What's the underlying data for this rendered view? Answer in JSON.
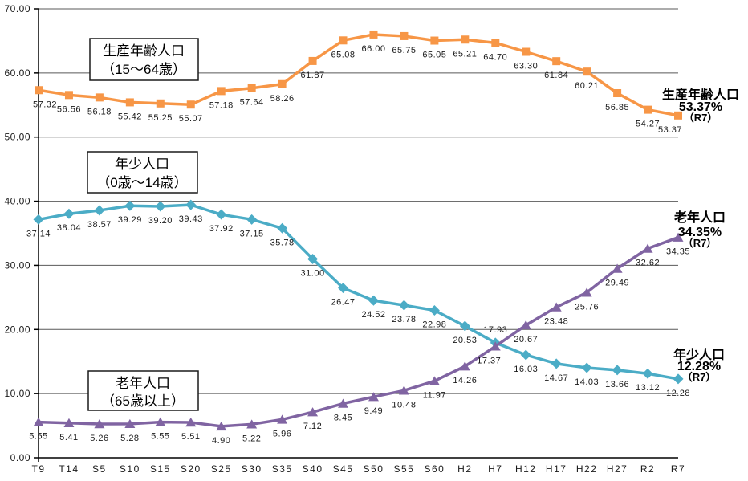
{
  "chart_data": {
    "type": "line",
    "title": "",
    "xlabel": "",
    "ylabel": "",
    "ylim": [
      0,
      70
    ],
    "ytick_step": 10,
    "ytick_labels": [
      "0.00",
      "10.00",
      "20.00",
      "30.00",
      "40.00",
      "50.00",
      "60.00",
      "70.00"
    ],
    "grid": "horizontal",
    "legend_position": "floating-boxes",
    "categories": [
      "T9",
      "T14",
      "S5",
      "S10",
      "S15",
      "S20",
      "S25",
      "S30",
      "S35",
      "S40",
      "S45",
      "S50",
      "S55",
      "S60",
      "H2",
      "H7",
      "H12",
      "H17",
      "H22",
      "H27",
      "R2",
      "R7"
    ],
    "series": [
      {
        "key": "working",
        "name": "生産年齢人口（15～64歳）",
        "color": "#F79646",
        "marker": "square",
        "values": [
          57.32,
          56.56,
          56.18,
          55.42,
          55.25,
          55.07,
          57.18,
          57.64,
          58.26,
          61.87,
          65.08,
          66.0,
          65.75,
          65.05,
          65.21,
          64.7,
          63.3,
          61.84,
          60.21,
          56.85,
          54.27,
          53.37
        ]
      },
      {
        "key": "youth",
        "name": "年少人口（0歳～14歳）",
        "color": "#4BACC6",
        "marker": "diamond",
        "values": [
          37.14,
          38.04,
          38.57,
          39.29,
          39.2,
          39.43,
          37.92,
          37.15,
          35.78,
          31.0,
          26.47,
          24.52,
          23.78,
          22.98,
          20.53,
          17.93,
          16.03,
          14.67,
          14.03,
          13.66,
          13.12,
          12.28
        ]
      },
      {
        "key": "elderly",
        "name": "老年人口（65歳以上）",
        "color": "#8064A2",
        "marker": "triangle",
        "values": [
          5.55,
          5.41,
          5.26,
          5.28,
          5.55,
          5.51,
          4.9,
          5.22,
          5.96,
          7.12,
          8.45,
          9.49,
          10.48,
          11.97,
          14.26,
          17.37,
          20.67,
          23.48,
          25.76,
          29.49,
          32.62,
          34.35
        ]
      }
    ],
    "label_format": "0.00",
    "label_overrides": {
      "working": {
        "0": {
          "dx": 8
        },
        "21": {
          "dx": -10
        }
      },
      "youth": {
        "15": {
          "dy": -13
        }
      },
      "elderly": {
        "15": {
          "dx": -8
        }
      }
    },
    "legend_boxes": [
      {
        "series": "working",
        "line1": "生産年齢人口",
        "line2": "（15～64歳）"
      },
      {
        "series": "youth",
        "line1": "年少人口",
        "line2": "（0歳～14歳）"
      },
      {
        "series": "elderly",
        "line1": "老年人口",
        "line2": "（65歳以上）"
      }
    ],
    "annotations": [
      {
        "series": "working",
        "line1": "生産年齢人口",
        "line2": "53.37%",
        "line3": "（R7）"
      },
      {
        "series": "elderly",
        "line1": "老年人口",
        "line2": "34.35%",
        "line3": "（R7）"
      },
      {
        "series": "youth",
        "line1": "年少人口",
        "line2": "12.28%",
        "line3": "（R7）"
      }
    ],
    "colors": {
      "working": "#F79646",
      "youth": "#4BACC6",
      "elderly": "#8064A2",
      "gridline": "#595959",
      "axis": "#000000",
      "data_label": "#1A1A1A",
      "legend_border": "#1A1A1A",
      "legend_fill": "#FFFFFF",
      "background": "#FFFFFF"
    }
  }
}
